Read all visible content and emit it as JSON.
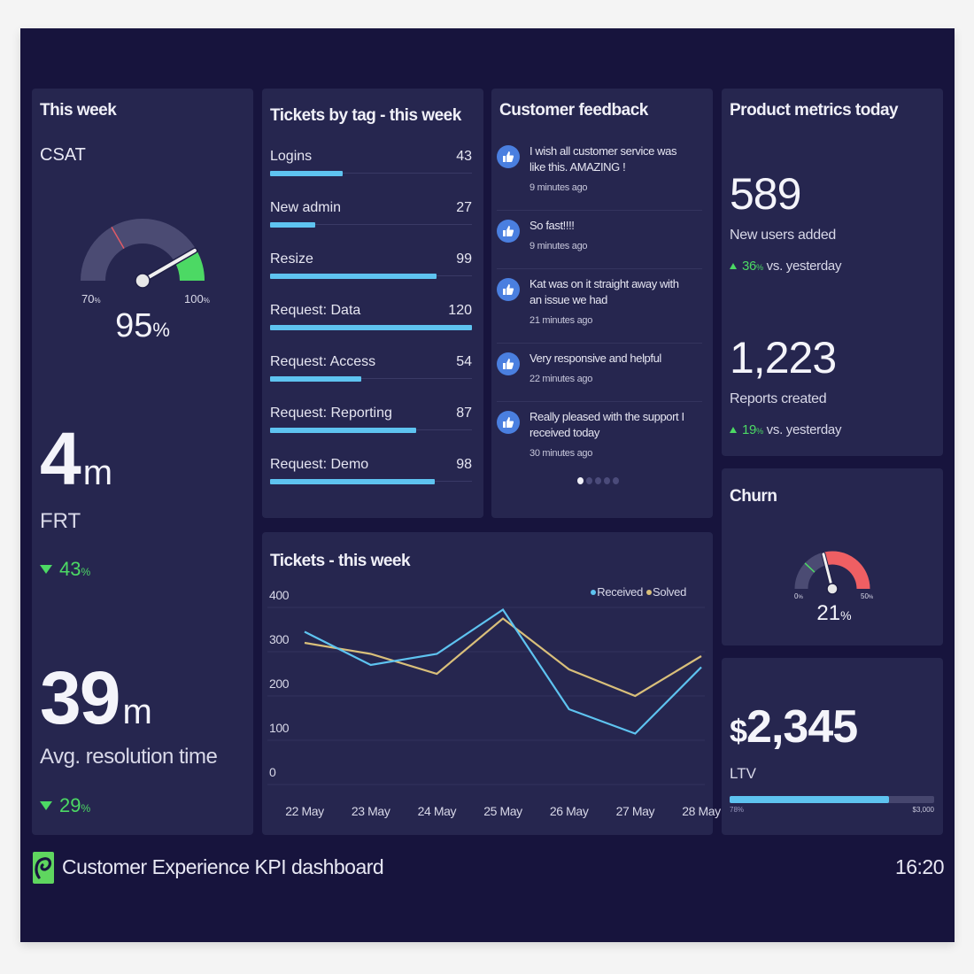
{
  "colors": {
    "frame_bg": "#17143d",
    "card_bg": "#26264f",
    "accent_blue": "#5ec3f0",
    "positive_green": "#4cd964",
    "churn_red": "#ef5f63",
    "solved_gold": "#d9bf7a",
    "received_blue": "#5ec3f0"
  },
  "this_week": {
    "title": "This week",
    "csat": {
      "label": "CSAT",
      "value": "95",
      "unit": "%",
      "gauge": {
        "min": 70,
        "max": 100,
        "value": 95,
        "target": 80
      },
      "min_label": "70",
      "max_label": "100",
      "pct_suffix": "%"
    },
    "frt": {
      "value": "4",
      "unit": "m",
      "label": "FRT",
      "delta": "43",
      "delta_unit": "%",
      "direction": "down",
      "icon": "triangle-down-icon"
    },
    "resolution": {
      "value": "39",
      "unit": "m",
      "label": "Avg. resolution time",
      "delta": "29",
      "delta_unit": "%",
      "direction": "down",
      "icon": "triangle-down-icon"
    }
  },
  "tickets_by_tag": {
    "title": "Tickets by tag - this week",
    "max": 120,
    "items": [
      {
        "label": "Logins",
        "count": "43",
        "value": 43
      },
      {
        "label": "New admin",
        "count": "27",
        "value": 27
      },
      {
        "label": "Resize",
        "count": "99",
        "value": 99
      },
      {
        "label": "Request: Data",
        "count": "120",
        "value": 120
      },
      {
        "label": "Request: Access",
        "count": "54",
        "value": 54
      },
      {
        "label": "Request: Reporting",
        "count": "87",
        "value": 87
      },
      {
        "label": "Request: Demo",
        "count": "98",
        "value": 98
      }
    ]
  },
  "customer_feedback": {
    "title": "Customer feedback",
    "icon": "thumbs-up-icon",
    "items": [
      {
        "text": "I wish all customer service was like this. AMAZING !",
        "time": "9 minutes ago"
      },
      {
        "text": "So fast!!!!",
        "time": "9 minutes ago"
      },
      {
        "text": "Kat was on it straight away with an issue we had",
        "time": "21 minutes ago"
      },
      {
        "text": "Very responsive and helpful",
        "time": "22 minutes ago"
      },
      {
        "text": "Really pleased with the support I received today",
        "time": "30 minutes ago"
      }
    ],
    "pagination": {
      "pages": 5,
      "active": 1
    }
  },
  "product_metrics": {
    "title": "Product metrics today",
    "metrics": [
      {
        "value": "589",
        "label": "New users added",
        "delta": "36",
        "delta_unit": "%",
        "delta_text": "vs. yesterday",
        "direction": "up"
      },
      {
        "value": "1,223",
        "label": "Reports created",
        "delta": "19",
        "delta_unit": "%",
        "delta_text": "vs. yesterday",
        "direction": "up"
      }
    ]
  },
  "churn": {
    "title": "Churn",
    "value": "21",
    "unit": "%",
    "gauge": {
      "min": 0,
      "max": 50,
      "value": 21,
      "target": 12
    },
    "min_label": "0",
    "max_label": "50",
    "pct_suffix": "%"
  },
  "ltv": {
    "currency": "$",
    "value": "2,345",
    "label": "LTV",
    "progress": 0.78,
    "min_label": "78%",
    "max_label": "$3,000"
  },
  "chart_data": {
    "type": "line",
    "title": "Tickets - this week",
    "xlabel": "",
    "ylabel": "",
    "x": [
      "22 May",
      "23 May",
      "24 May",
      "25 May",
      "26 May",
      "27 May",
      "28 May"
    ],
    "ylim": [
      0,
      400
    ],
    "yticks": [
      0,
      100,
      200,
      300,
      400
    ],
    "grid": true,
    "legend": "top-right",
    "series": [
      {
        "name": "Received",
        "color": "#5ec3f0",
        "values": [
          345,
          270,
          295,
          395,
          170,
          115,
          265
        ]
      },
      {
        "name": "Solved",
        "color": "#d9bf7a",
        "values": [
          320,
          295,
          250,
          375,
          260,
          200,
          290
        ]
      }
    ]
  },
  "footer": {
    "logo": "geckoboard-logo-icon",
    "title": "Customer Experience KPI dashboard",
    "time": "16:20"
  }
}
